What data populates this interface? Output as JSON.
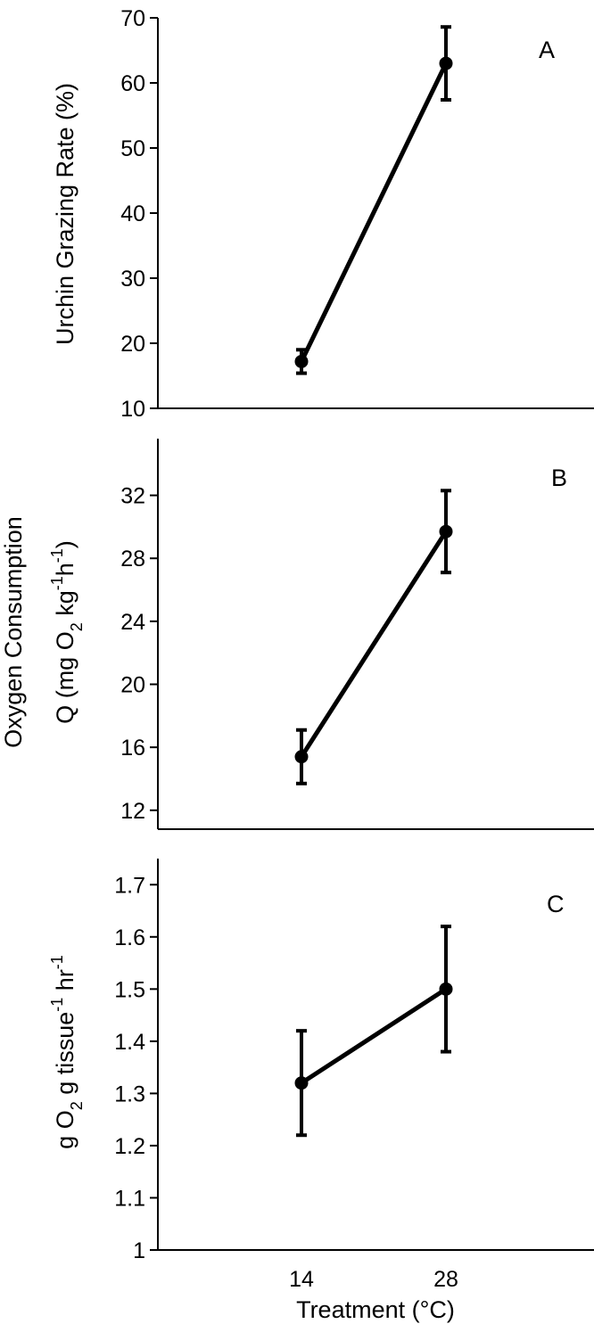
{
  "chart_data": [
    {
      "type": "line",
      "panel": "A",
      "ylabel": "Urchin Grazing Rate (%)",
      "categories": [
        "14",
        "28"
      ],
      "values": [
        17.2,
        63.0
      ],
      "error": [
        1.8,
        5.6
      ],
      "ylim": [
        10,
        70
      ],
      "yticks": [
        "10",
        "20",
        "30",
        "40",
        "50",
        "60",
        "70"
      ],
      "grid": false
    },
    {
      "type": "line",
      "panel": "B",
      "ylabel_line1": "Oxygen Consumption",
      "ylabel_line2": {
        "pre": "Q (mg O",
        "sub": "2",
        "mid": " kg",
        "sup1": "-1",
        "mid2": "h",
        "sup2": "-1",
        "post": ")"
      },
      "categories": [
        "14",
        "28"
      ],
      "values": [
        15.4,
        29.7
      ],
      "error": [
        1.7,
        2.6
      ],
      "ylim": [
        10.8,
        35.6
      ],
      "yticks": [
        "12",
        "16",
        "20",
        "24",
        "28",
        "32"
      ],
      "grid": false
    },
    {
      "type": "line",
      "panel": "C",
      "ylabel": {
        "pre": "g O",
        "sub": "2",
        "mid": " g tissue",
        "sup1": "-1",
        "mid2": " hr",
        "sup2": "-1"
      },
      "categories": [
        "14",
        "28"
      ],
      "values": [
        1.32,
        1.5
      ],
      "error": [
        0.1,
        0.12
      ],
      "ylim": [
        1.0,
        1.75
      ],
      "yticks": [
        "1",
        "1.1",
        "1.2",
        "1.3",
        "1.4",
        "1.5",
        "1.6",
        "1.7"
      ],
      "xlabel": "Treatment (°C)",
      "grid": false
    }
  ]
}
